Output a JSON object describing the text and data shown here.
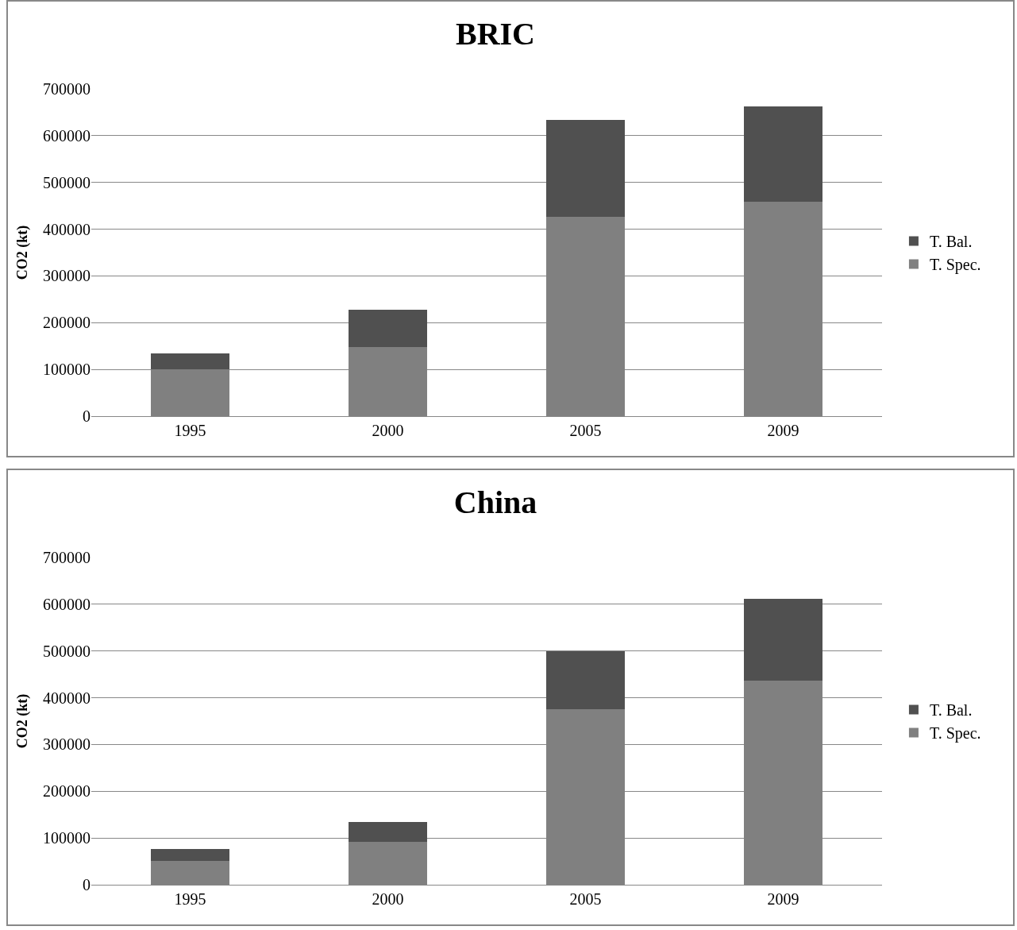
{
  "chart_data": [
    {
      "type": "bar",
      "title": "BRIC",
      "ylabel": "CO2 (kt)",
      "categories": [
        "1995",
        "2000",
        "2005",
        "2009"
      ],
      "stacked": true,
      "legend": "right",
      "grid": "y",
      "ylim": [
        0,
        700000
      ],
      "yticks": [
        0,
        100000,
        200000,
        300000,
        400000,
        500000,
        600000,
        700000
      ],
      "series": [
        {
          "name": "T. Spec.",
          "color": "#808080",
          "values": [
            101000,
            147000,
            426000,
            459000
          ]
        },
        {
          "name": "T. Bal.",
          "color": "#505050",
          "values": [
            33000,
            80000,
            207000,
            204000
          ]
        }
      ]
    },
    {
      "type": "bar",
      "title": "China",
      "ylabel": "CO2 (kt)",
      "categories": [
        "1995",
        "2000",
        "2005",
        "2009"
      ],
      "stacked": true,
      "legend": "right",
      "grid": "y",
      "ylim": [
        0,
        700000
      ],
      "yticks": [
        0,
        100000,
        200000,
        300000,
        400000,
        500000,
        600000,
        700000
      ],
      "series": [
        {
          "name": "T. Spec.",
          "color": "#808080",
          "values": [
            51000,
            92000,
            375000,
            436000
          ]
        },
        {
          "name": "T. Bal.",
          "color": "#505050",
          "values": [
            26000,
            42000,
            124000,
            175000
          ]
        }
      ]
    }
  ]
}
